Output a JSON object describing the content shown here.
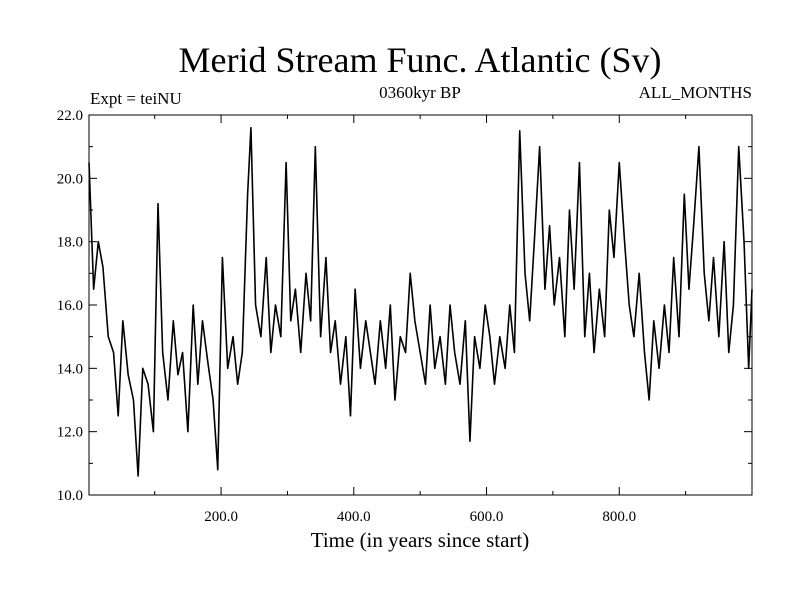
{
  "chart_data": {
    "type": "line",
    "title": "Merid Stream Func. Atlantic (Sv)",
    "subtitle": "0360kyr BP",
    "annotation_left": "Expt = teiNU",
    "annotation_right": "ALL_MONTHS",
    "xlabel": "Time (in years since start)",
    "ylabel": "",
    "xlim": [
      1,
      1000
    ],
    "ylim": [
      10,
      22
    ],
    "x_ticks": [
      200,
      400,
      600,
      800
    ],
    "x_tick_labels": [
      "200.0",
      "400.0",
      "600.0",
      "800.0"
    ],
    "y_ticks": [
      10,
      12,
      14,
      16,
      18,
      20,
      22
    ],
    "y_tick_labels": [
      "10.0",
      "12.0",
      "14.0",
      "16.0",
      "18.0",
      "20.0",
      "22.0"
    ],
    "grid": false,
    "line_color": "#000000",
    "series": [
      {
        "x": [
          1,
          8,
          15,
          22,
          30,
          38,
          45,
          52,
          60,
          68,
          75,
          82,
          90,
          98,
          105,
          112,
          120,
          128,
          135,
          142,
          150,
          158,
          165,
          172,
          180,
          188,
          195,
          202,
          210,
          218,
          225,
          232,
          240,
          245,
          252,
          260,
          268,
          275,
          282,
          290,
          298,
          305,
          312,
          320,
          328,
          335,
          342,
          350,
          358,
          365,
          372,
          380,
          388,
          395,
          402,
          410,
          418,
          425,
          432,
          440,
          448,
          455,
          462,
          470,
          478,
          485,
          492,
          500,
          508,
          515,
          522,
          530,
          538,
          545,
          552,
          560,
          568,
          575,
          582,
          590,
          598,
          605,
          612,
          620,
          628,
          635,
          642,
          650,
          658,
          665,
          672,
          680,
          688,
          695,
          702,
          710,
          718,
          725,
          732,
          740,
          748,
          755,
          762,
          770,
          778,
          785,
          792,
          800,
          808,
          815,
          822,
          830,
          838,
          845,
          852,
          860,
          868,
          875,
          882,
          890,
          898,
          905,
          912,
          920,
          928,
          935,
          942,
          950,
          958,
          965,
          972,
          980,
          988,
          995,
          1000
        ],
        "y": [
          20.5,
          16.5,
          18.0,
          17.2,
          15.0,
          14.5,
          12.5,
          15.5,
          13.8,
          13.0,
          10.6,
          14.0,
          13.5,
          12.0,
          19.2,
          14.5,
          13.0,
          15.5,
          13.8,
          14.5,
          12.0,
          16.0,
          13.5,
          15.5,
          14.2,
          13.0,
          10.8,
          17.5,
          14.0,
          15.0,
          13.5,
          14.5,
          19.5,
          21.6,
          16.0,
          15.0,
          17.5,
          14.5,
          16.0,
          15.0,
          20.5,
          15.5,
          16.5,
          14.5,
          17.0,
          15.5,
          21.0,
          15.0,
          17.5,
          14.5,
          15.5,
          13.5,
          15.0,
          12.5,
          16.5,
          14.0,
          15.5,
          14.5,
          13.5,
          15.5,
          14.0,
          16.0,
          13.0,
          15.0,
          14.5,
          17.0,
          15.5,
          14.5,
          13.5,
          16.0,
          14.0,
          15.0,
          13.5,
          16.0,
          14.5,
          13.5,
          15.5,
          11.7,
          15.0,
          14.0,
          16.0,
          15.0,
          13.5,
          15.0,
          14.0,
          16.0,
          14.5,
          21.5,
          17.0,
          15.5,
          18.0,
          21.0,
          16.5,
          18.5,
          16.0,
          17.5,
          15.0,
          19.0,
          16.5,
          20.5,
          15.0,
          17.0,
          14.5,
          16.5,
          15.0,
          19.0,
          17.5,
          20.5,
          18.0,
          16.0,
          15.0,
          17.0,
          14.5,
          13.0,
          15.5,
          14.0,
          16.0,
          14.5,
          17.5,
          15.0,
          19.5,
          16.5,
          18.5,
          21.0,
          17.0,
          15.5,
          17.5,
          15.0,
          18.0,
          14.5,
          16.0,
          21.0,
          18.0,
          14.0,
          16.5
        ]
      }
    ]
  }
}
